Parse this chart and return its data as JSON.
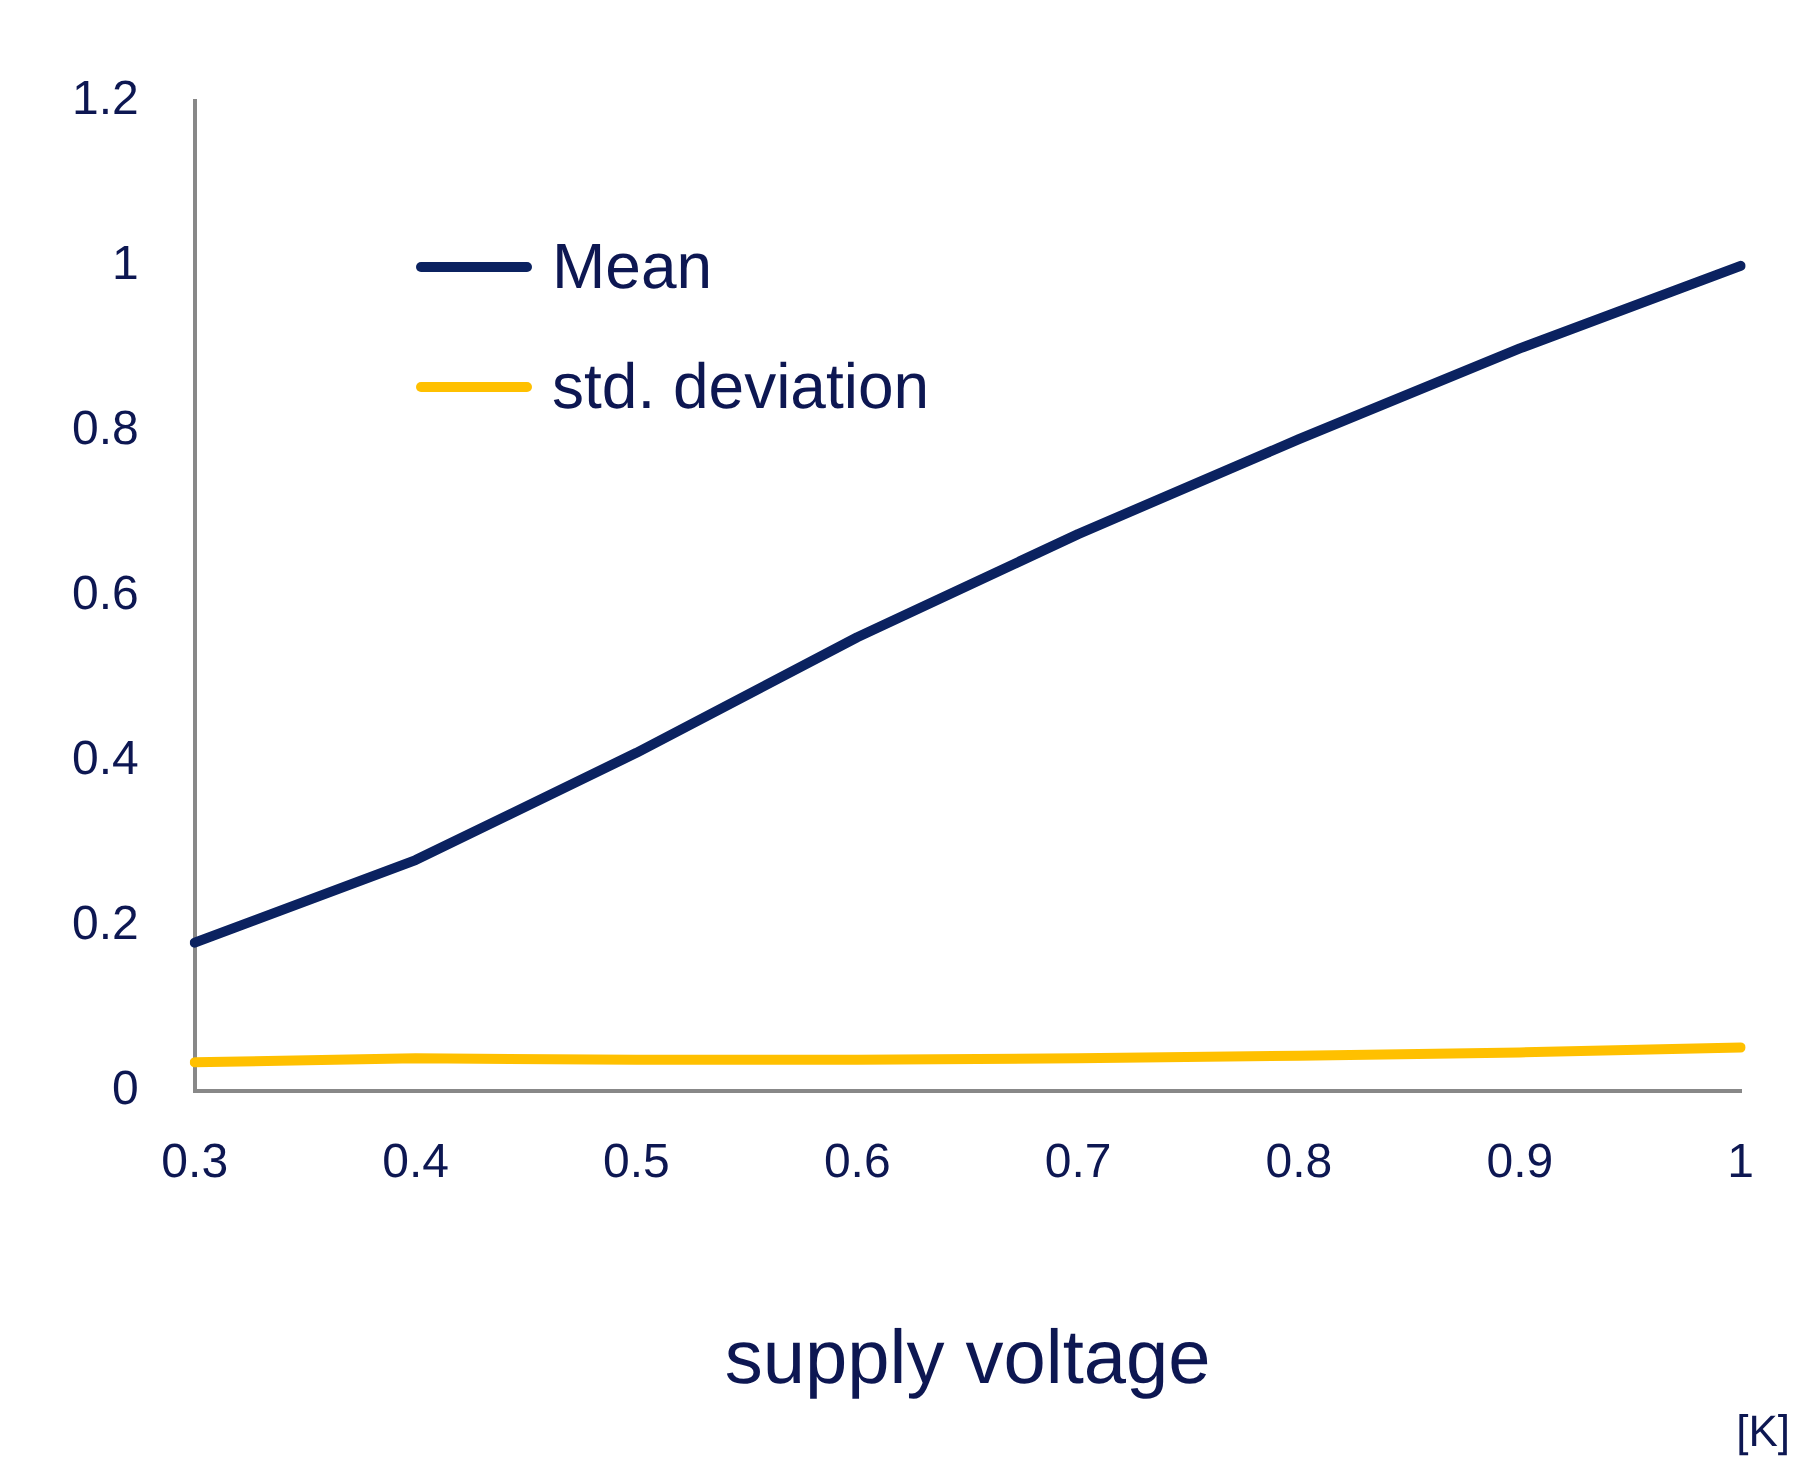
{
  "chart_data": {
    "type": "line",
    "xlabel": "supply voltage",
    "categories": [
      "0.3",
      "0.4",
      "0.5",
      "0.6",
      "0.7",
      "0.8",
      "0.9",
      "1"
    ],
    "series": [
      {
        "name": "Mean",
        "color": "#0b2260",
        "values": [
          0.18,
          0.28,
          0.41,
          0.55,
          0.675,
          0.79,
          0.9,
          1.0
        ]
      },
      {
        "name": "std. deviation",
        "color": "#ffc000",
        "values": [
          0.035,
          0.04,
          0.038,
          0.038,
          0.04,
          0.043,
          0.047,
          0.053
        ]
      }
    ],
    "ylim": [
      0,
      1.2
    ],
    "yticks": [
      0,
      0.2,
      0.4,
      0.6,
      0.8,
      1,
      1.2
    ],
    "grid": false,
    "legend": "top left",
    "marker": "none",
    "line_style": "solid",
    "annotations": [
      "[K]"
    ]
  }
}
